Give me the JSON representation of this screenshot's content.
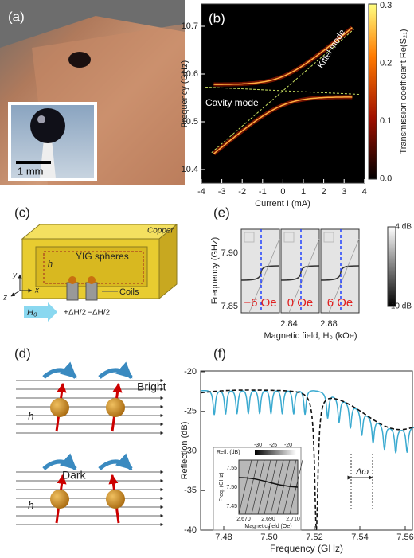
{
  "panels": {
    "a": {
      "label": "(a)",
      "scale_bar": "1 mm"
    },
    "b": {
      "label": "(b)",
      "y_label": "Frequency (GHz)",
      "x_label": "Current I (mA)",
      "yticks": [
        "10.7",
        "10.6",
        "10.5",
        "10.4"
      ],
      "xticks": [
        "-4",
        "-3",
        "-2",
        "-1",
        "0",
        "1",
        "2",
        "3",
        "4"
      ],
      "colorbar_label": "Transmission coefficient Re(S₂₁)",
      "colorbar_ticks": [
        "0.3",
        "0.2",
        "0.1",
        "0.0"
      ],
      "kittel_label": "Kittel mode",
      "cavity_label": "Cavity mode"
    },
    "c": {
      "label": "(c)",
      "copper": "Copper",
      "spheres": "YIG spheres",
      "h": "h",
      "field": "H₀",
      "coils": "Coils",
      "plus": "+ΔH/2",
      "minus": "−ΔH/2",
      "axis_x": "x",
      "axis_y": "y",
      "axis_z": "z"
    },
    "d": {
      "label": "(d)",
      "bright": "Bright",
      "dark": "Dark",
      "h": "h"
    },
    "e": {
      "label": "(e)",
      "y_label": "Frequency (GHz)",
      "x_label": "Magnetic field, H₀ (kOe)",
      "yticks": [
        "7.90",
        "7.85"
      ],
      "xticks": [
        "2.84",
        "2.88"
      ],
      "offsets": [
        "−6 Oe",
        "0 Oe",
        "6 Oe"
      ],
      "colorbar_ticks": [
        "4 dB",
        "-10 dB"
      ]
    },
    "f": {
      "label": "(f)",
      "y_label": "Reflection (dB)",
      "x_label": "Frequency (GHz)",
      "yticks": [
        "-20",
        "-25",
        "-30",
        "-35",
        "-40"
      ],
      "xticks": [
        "7.48",
        "7.50",
        "7.52",
        "7.54",
        "7.56"
      ],
      "linewidth_label": "Δω",
      "inset": {
        "colorbar_label": "Refl. (dB)",
        "colorbar_ticks": [
          "-30",
          "-25",
          "-20"
        ],
        "y_label": "Freq. (GHz)",
        "yticks": [
          "7.55",
          "7.50",
          "7.45"
        ],
        "x_label": "Magnetic field (Oe)",
        "xticks": [
          "2,670",
          "2,690",
          "2,710"
        ]
      }
    }
  }
}
